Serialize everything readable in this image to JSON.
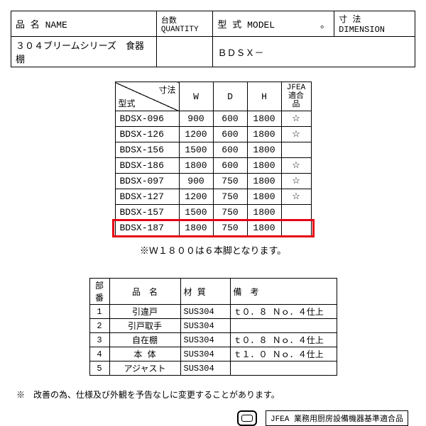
{
  "header": {
    "name_label": "品 名 NAME",
    "qty_label": "台数 QUANTITY",
    "model_label": "型 式 MODEL",
    "model_dot": "。",
    "dim_label": "寸 法 DIMENSION",
    "name_value": "３０４ブリームシリーズ　食器棚",
    "model_value": "ＢＤＳＸ－"
  },
  "dim_table": {
    "diag_top": "寸法",
    "diag_bottom": "型式",
    "cols": {
      "w": "W",
      "d": "D",
      "h": "H",
      "jfea_l1": "JFEA",
      "jfea_l2": "適合品"
    },
    "rows": [
      {
        "model": "BDSX-096",
        "w": "900",
        "d": "600",
        "h": "1800",
        "j": "☆"
      },
      {
        "model": "BDSX-126",
        "w": "1200",
        "d": "600",
        "h": "1800",
        "j": "☆"
      },
      {
        "model": "BDSX-156",
        "w": "1500",
        "d": "600",
        "h": "1800",
        "j": ""
      },
      {
        "model": "BDSX-186",
        "w": "1800",
        "d": "600",
        "h": "1800",
        "j": "☆"
      },
      {
        "model": "BDSX-097",
        "w": "900",
        "d": "750",
        "h": "1800",
        "j": "☆"
      },
      {
        "model": "BDSX-127",
        "w": "1200",
        "d": "750",
        "h": "1800",
        "j": "☆"
      },
      {
        "model": "BDSX-157",
        "w": "1500",
        "d": "750",
        "h": "1800",
        "j": ""
      },
      {
        "model": "BDSX-187",
        "w": "1800",
        "d": "750",
        "h": "1800",
        "j": "",
        "highlight": true
      }
    ],
    "highlight_color": "#e60012"
  },
  "note": "※Ｗ１８００は６本脚となります。",
  "parts_table": {
    "head": {
      "no": "部番",
      "name": "品　名",
      "mat": "材 質",
      "rem": "備　考"
    },
    "rows": [
      {
        "no": "1",
        "name": "引違戸",
        "mat": "SUS304",
        "rem": "ｔ０．８ Ｎｏ．４仕上"
      },
      {
        "no": "2",
        "name": "引戸取手",
        "mat": "SUS304",
        "rem": ""
      },
      {
        "no": "3",
        "name": "自在棚",
        "mat": "SUS304",
        "rem": "ｔ０．８ Ｎｏ．４仕上"
      },
      {
        "no": "4",
        "name": "本 体",
        "mat": "SUS304",
        "rem": "ｔ１．０ Ｎｏ．４仕上"
      },
      {
        "no": "5",
        "name": "アジャスト",
        "mat": "SUS304",
        "rem": ""
      }
    ]
  },
  "disclaimer": "※　改善の為、仕様及び外観を予告なしに変更することがあります。",
  "footer": {
    "badge": "JFEA 業務用厨房設備機器基準適合品"
  }
}
